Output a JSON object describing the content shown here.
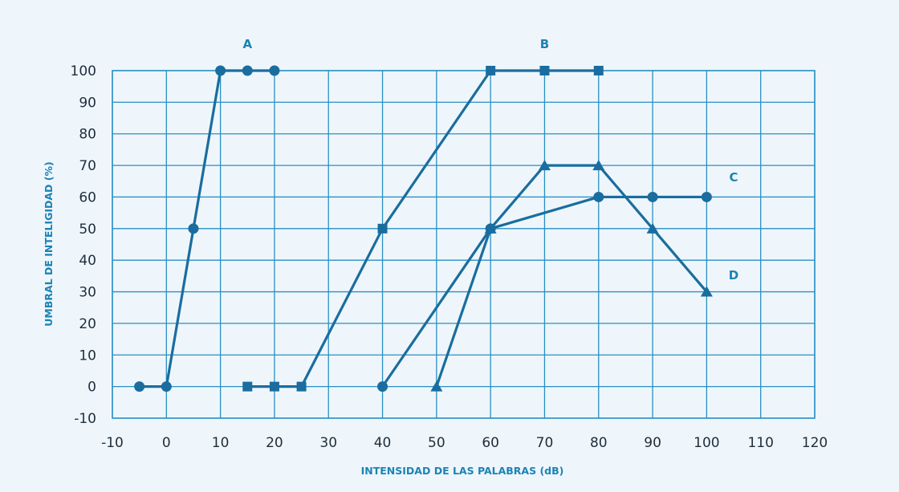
{
  "chart_data": {
    "type": "line",
    "xlabel": "INTENSIDAD DE LAS PALABRAS (dB)",
    "ylabel": "UMBRAL DE INTELIGIDAD (%)",
    "x_ticks": [
      "-10",
      "0",
      "10",
      "20",
      "30",
      "40",
      "50",
      "60",
      "70",
      "80",
      "90",
      "100",
      "110",
      "120"
    ],
    "y_ticks": [
      "-10",
      "0",
      "10",
      "20",
      "30",
      "40",
      "50",
      "60",
      "70",
      "80",
      "90",
      "100"
    ],
    "xlim": [
      -10,
      120
    ],
    "ylim": [
      -10,
      100
    ],
    "grid": true,
    "series": [
      {
        "name": "A",
        "marker": "circle",
        "x": [
          -5,
          0,
          5,
          10,
          15,
          20
        ],
        "y": [
          0,
          0,
          50,
          100,
          100,
          100
        ]
      },
      {
        "name": "B",
        "marker": "square",
        "x": [
          15,
          20,
          25,
          40,
          60,
          70,
          80
        ],
        "y": [
          0,
          0,
          0,
          50,
          100,
          100,
          100
        ]
      },
      {
        "name": "C",
        "marker": "circle",
        "x": [
          40,
          60,
          80,
          90,
          100
        ],
        "y": [
          0,
          50,
          60,
          60,
          60
        ]
      },
      {
        "name": "D",
        "marker": "triangle",
        "x": [
          50,
          60,
          70,
          80,
          90,
          100
        ],
        "y": [
          0,
          50,
          70,
          70,
          50,
          30
        ]
      }
    ],
    "colors": {
      "line": "#1a6d9e",
      "grid": "#2a8fc4",
      "accent": "#1c83b5",
      "background": "#eef6fb"
    }
  }
}
